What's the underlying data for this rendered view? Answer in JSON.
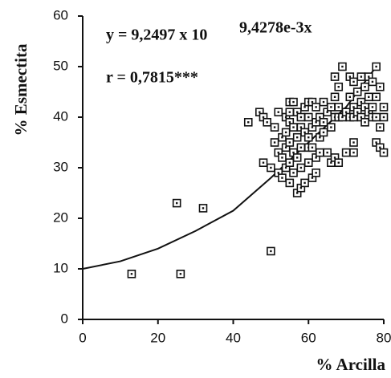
{
  "chart_data": {
    "type": "scatter",
    "x_label": "% Arcilla",
    "y_label": "% Esmectita",
    "equation": "y = 9,2497 x 10",
    "equation_exponent": "9,4278e-3x",
    "r_label": "r = 0,7815***",
    "xlim": [
      0,
      80
    ],
    "ylim": [
      0,
      60
    ],
    "xticks": [
      0,
      20,
      40,
      60,
      80
    ],
    "yticks": [
      0,
      10,
      20,
      30,
      40,
      50,
      60
    ],
    "color": "#111111",
    "x": [
      13,
      25,
      26,
      32,
      50,
      44,
      47,
      48,
      49,
      48,
      50,
      51,
      51,
      52,
      52,
      52,
      53,
      53,
      53,
      54,
      54,
      54,
      54,
      55,
      55,
      55,
      55,
      55,
      55,
      56,
      56,
      56,
      56,
      57,
      57,
      57,
      57,
      58,
      58,
      58,
      58,
      58,
      59,
      59,
      59,
      60,
      60,
      60,
      60,
      60,
      61,
      61,
      61,
      61,
      62,
      62,
      62,
      62,
      63,
      63,
      63,
      64,
      64,
      64,
      65,
      65,
      66,
      66,
      66,
      67,
      67,
      67,
      67,
      68,
      68,
      68,
      68,
      69,
      69,
      70,
      70,
      71,
      71,
      71,
      72,
      72,
      72,
      72,
      72,
      73,
      73,
      74,
      74,
      74,
      75,
      75,
      75,
      76,
      76,
      76,
      77,
      77,
      77,
      78,
      78,
      78,
      78,
      79,
      79,
      79,
      80,
      80,
      80
    ],
    "values": [
      9,
      23,
      9,
      22,
      13.5,
      39,
      41,
      40,
      39,
      31,
      30,
      38,
      35,
      41,
      33,
      29,
      36,
      32,
      28,
      40,
      37,
      34,
      30,
      43,
      41,
      39,
      35,
      31,
      27,
      43,
      38,
      33,
      29,
      41,
      36,
      32,
      25,
      40,
      38,
      34,
      30,
      26,
      42,
      37,
      27,
      43,
      40,
      36,
      34,
      31,
      43,
      38,
      34,
      28,
      42,
      39,
      32,
      29,
      40,
      36,
      33,
      43,
      39,
      37,
      41,
      33,
      42,
      38,
      31,
      48,
      44,
      40,
      32,
      46,
      42,
      40,
      31,
      50,
      40,
      41,
      33,
      48,
      44,
      40,
      47,
      42,
      40,
      35,
      33,
      45,
      41,
      48,
      43,
      40,
      46,
      42,
      39,
      48,
      44,
      41,
      47,
      42,
      40,
      50,
      44,
      35,
      40,
      46,
      38,
      34,
      42,
      33,
      40
    ],
    "fit": {
      "x": [
        0,
        10,
        20,
        30,
        40,
        50,
        60,
        70,
        78
      ],
      "values": [
        10,
        11.5,
        14,
        17.5,
        21.5,
        28,
        35,
        42,
        50
      ]
    }
  }
}
